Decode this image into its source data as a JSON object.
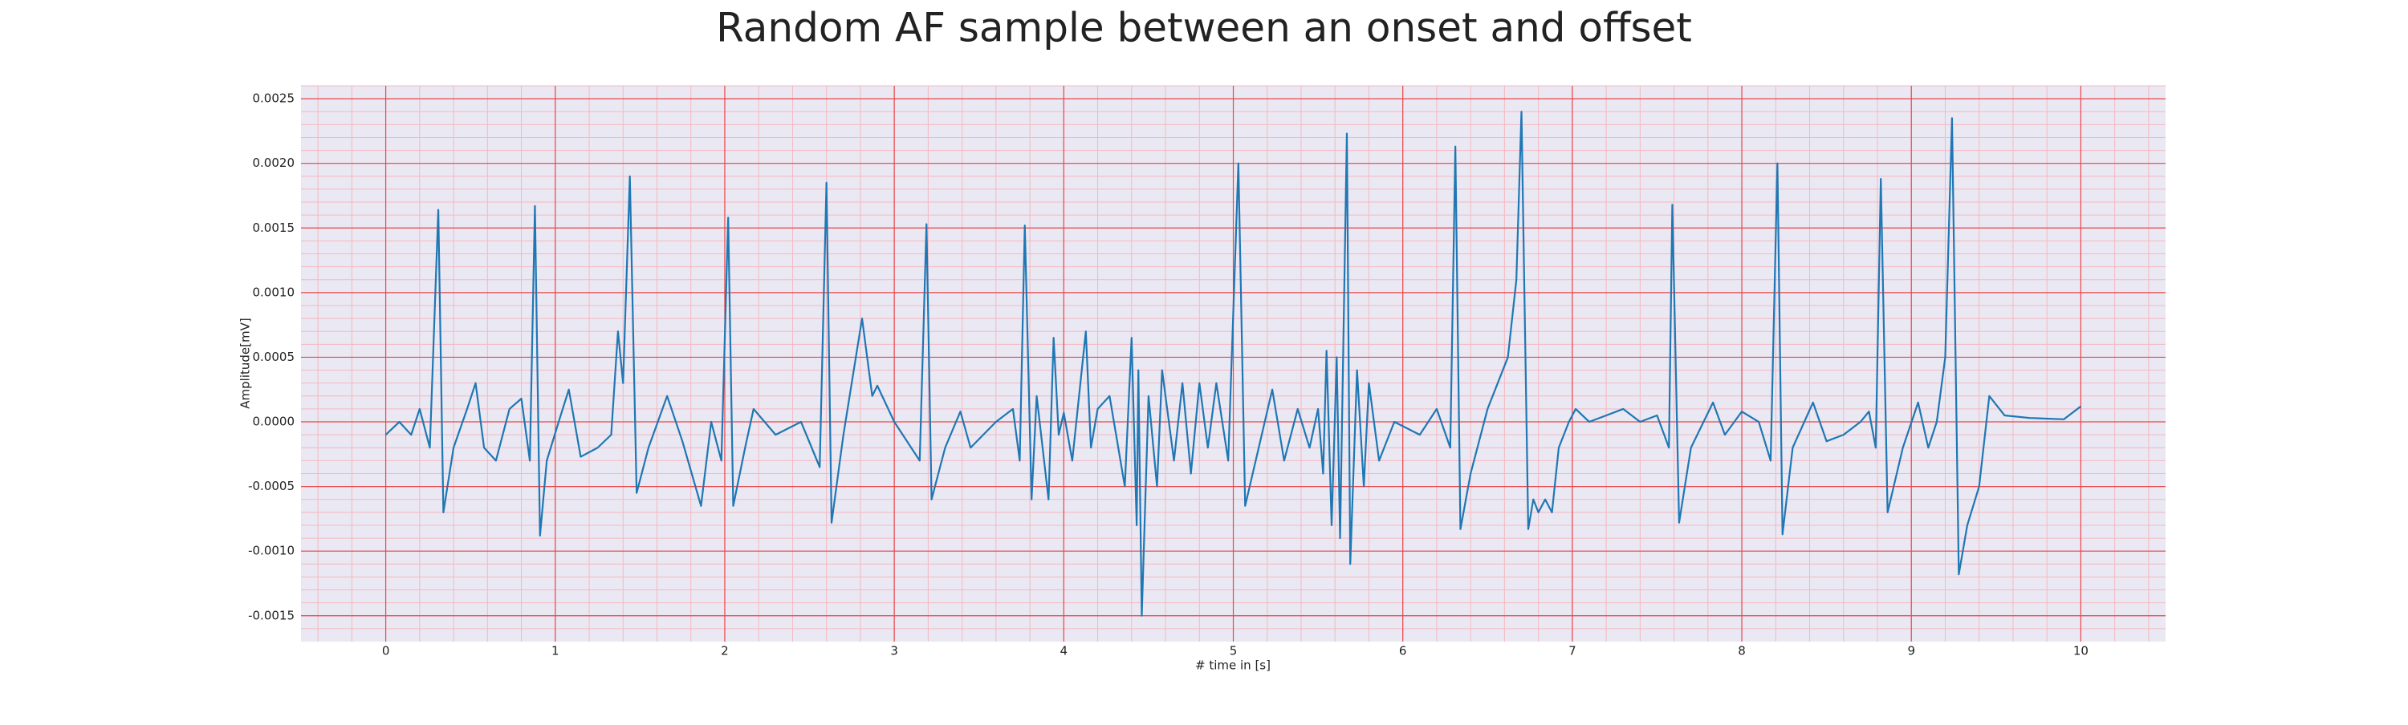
{
  "chart_data": {
    "type": "line",
    "title": "Random AF sample between an onset and offset",
    "x_label": "# time in [s]",
    "y_label": "Amplitude[mV]",
    "xlim": [
      -0.5,
      10.5
    ],
    "ylim": [
      -0.0017,
      0.0026
    ],
    "xticks": [
      0,
      1,
      2,
      3,
      4,
      5,
      6,
      7,
      8,
      9,
      10
    ],
    "yticks": [
      -0.0015,
      {
        "value": -0.001,
        "label": "-0.0010"
      },
      -0.0005,
      {
        "value": 0,
        "label": "0.0000"
      },
      0.0005,
      {
        "value": 0.001,
        "label": "0.0010"
      },
      0.0015,
      {
        "value": 0.002,
        "label": "0.0020"
      },
      0.0025
    ],
    "grid": true,
    "minor_grid": true,
    "background": "#eae8f2",
    "grid_color": "#e8474a",
    "minor_grid_color": "#f5b8c0",
    "series": [
      {
        "color": "#1f77b4",
        "x": [
          0.0,
          0.08,
          0.15,
          0.2,
          0.26,
          0.31,
          0.34,
          0.4,
          0.48,
          0.53,
          0.58,
          0.65,
          0.73,
          0.8,
          0.85,
          0.88,
          0.91,
          0.95,
          1.02,
          1.08,
          1.15,
          1.25,
          1.33,
          1.37,
          1.4,
          1.44,
          1.48,
          1.55,
          1.66,
          1.75,
          1.86,
          1.92,
          1.98,
          2.02,
          2.05,
          2.12,
          2.17,
          2.3,
          2.45,
          2.56,
          2.6,
          2.63,
          2.7,
          2.81,
          2.87,
          2.9,
          3.0,
          3.1,
          3.15,
          3.19,
          3.22,
          3.3,
          3.39,
          3.45,
          3.6,
          3.7,
          3.74,
          3.77,
          3.81,
          3.84,
          3.91,
          3.94,
          3.97,
          4.0,
          4.05,
          4.13,
          4.16,
          4.2,
          4.27,
          4.36,
          4.4,
          4.43,
          4.44,
          4.46,
          4.5,
          4.55,
          4.58,
          4.65,
          4.7,
          4.75,
          4.8,
          4.85,
          4.9,
          4.97,
          5.03,
          5.07,
          5.15,
          5.23,
          5.3,
          5.38,
          5.45,
          5.5,
          5.53,
          5.55,
          5.58,
          5.61,
          5.63,
          5.67,
          5.69,
          5.73,
          5.77,
          5.8,
          5.86,
          5.95,
          6.1,
          6.2,
          6.28,
          6.31,
          6.34,
          6.4,
          6.5,
          6.62,
          6.67,
          6.7,
          6.74,
          6.77,
          6.8,
          6.84,
          6.88,
          6.92,
          6.98,
          7.02,
          7.1,
          7.2,
          7.3,
          7.4,
          7.5,
          7.57,
          7.59,
          7.63,
          7.7,
          7.83,
          7.9,
          8.0,
          8.1,
          8.17,
          8.21,
          8.24,
          8.3,
          8.42,
          8.5,
          8.6,
          8.7,
          8.75,
          8.79,
          8.82,
          8.86,
          8.95,
          9.04,
          9.1,
          9.15,
          9.2,
          9.24,
          9.28,
          9.33,
          9.4,
          9.46,
          9.55,
          9.7,
          9.9,
          10.0
        ],
        "values": [
          -0.0001,
          0.0,
          -0.0001,
          0.0001,
          -0.0002,
          0.00164,
          -0.0007,
          -0.0002,
          0.0001,
          0.0003,
          -0.0002,
          -0.0003,
          0.0001,
          0.00018,
          -0.0003,
          0.00167,
          -0.00088,
          -0.0003,
          0.0,
          0.00025,
          -0.00027,
          -0.0002,
          -0.0001,
          0.0007,
          0.0003,
          0.0019,
          -0.00055,
          -0.0002,
          0.0002,
          -0.00015,
          -0.00065,
          0.0,
          -0.0003,
          0.00158,
          -0.00065,
          -0.0002,
          0.0001,
          -0.0001,
          0.0,
          -0.00035,
          0.00185,
          -0.00078,
          -0.0001,
          0.0008,
          0.0002,
          0.00028,
          0.0,
          -0.0002,
          -0.0003,
          0.00153,
          -0.0006,
          -0.0002,
          8e-05,
          -0.0002,
          0.0,
          0.0001,
          -0.0003,
          0.00152,
          -0.0006,
          0.0002,
          -0.0006,
          0.00065,
          -0.0001,
          7e-05,
          -0.0003,
          0.0007,
          -0.0002,
          0.0001,
          0.0002,
          -0.0005,
          0.00065,
          -0.0008,
          0.0004,
          -0.0015,
          0.0002,
          -0.0005,
          0.0004,
          -0.0003,
          0.0003,
          -0.0004,
          0.0003,
          -0.0002,
          0.0003,
          -0.0003,
          0.002,
          -0.00065,
          -0.0002,
          0.00025,
          -0.0003,
          0.0001,
          -0.0002,
          0.0001,
          -0.0004,
          0.00055,
          -0.0008,
          0.0005,
          -0.0009,
          0.00223,
          -0.0011,
          0.0004,
          -0.0005,
          0.0003,
          -0.0003,
          0.0,
          -0.0001,
          0.0001,
          -0.0002,
          0.00213,
          -0.00083,
          -0.0004,
          0.0001,
          0.0005,
          0.0011,
          0.0024,
          -0.00083,
          -0.0006,
          -0.0007,
          -0.0006,
          -0.0007,
          -0.0002,
          0.0,
          0.0001,
          0.0,
          5e-05,
          0.0001,
          0.0,
          5e-05,
          -0.0002,
          0.00168,
          -0.00078,
          -0.0002,
          0.00015,
          -0.0001,
          8e-05,
          0.0,
          -0.0003,
          0.002,
          -0.00087,
          -0.0002,
          0.00015,
          -0.00015,
          -0.0001,
          0.0,
          8e-05,
          -0.0002,
          0.00188,
          -0.0007,
          -0.0002,
          0.00015,
          -0.0002,
          0.0,
          0.0005,
          0.00235,
          -0.00118,
          -0.0008,
          -0.0005,
          0.0002,
          5e-05,
          3e-05,
          2e-05,
          0.00012
        ]
      }
    ]
  }
}
